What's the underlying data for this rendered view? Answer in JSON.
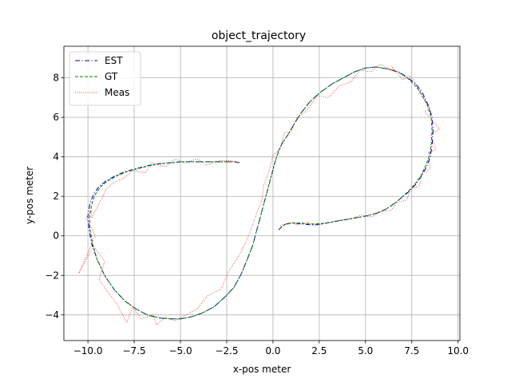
{
  "chart_data": {
    "type": "line",
    "title": "object_trajectory",
    "xlabel": "x-pos meter",
    "ylabel": "y-pos meter",
    "xlim": [
      -11.3,
      10.1
    ],
    "ylim": [
      -5.3,
      9.6
    ],
    "xticks": [
      -10.0,
      -7.5,
      -5.0,
      -2.5,
      0.0,
      2.5,
      5.0,
      7.5,
      10.0
    ],
    "xtick_labels": [
      "−10.0",
      "−7.5",
      "−5.0",
      "−2.5",
      "0.0",
      "2.5",
      "5.0",
      "7.5",
      "10.0"
    ],
    "yticks": [
      -4,
      -2,
      0,
      2,
      4,
      6,
      8
    ],
    "ytick_labels": [
      "−4",
      "−2",
      "0",
      "2",
      "4",
      "6",
      "8"
    ],
    "grid": true,
    "legend_position": "top-left",
    "series": [
      {
        "name": "EST",
        "color": "#0000cc",
        "style": "dashdot",
        "x": [
          0.3,
          0.5,
          0.7,
          1.1,
          1.6,
          2.1,
          2.6,
          3.2,
          3.8,
          4.4,
          5.0,
          5.6,
          6.1,
          6.5,
          6.9,
          7.3,
          7.7,
          8.0,
          8.3,
          8.5,
          8.6,
          8.65,
          8.6,
          8.4,
          8.1,
          7.7,
          7.3,
          6.8,
          6.2,
          5.6,
          5.0,
          4.4,
          3.8,
          3.2,
          2.6,
          2.0,
          1.5,
          1.1,
          0.8,
          0.5,
          0.3,
          0.1,
          -0.1,
          -0.3,
          -0.5,
          -0.7,
          -0.9,
          -1.1,
          -1.4,
          -1.7,
          -2.1,
          -2.6,
          -3.2,
          -3.8,
          -4.4,
          -5.0,
          -5.6,
          -6.2,
          -6.8,
          -7.4,
          -8.0,
          -8.6,
          -9.1,
          -9.5,
          -9.8,
          -9.95,
          -10.0,
          -9.9,
          -9.7,
          -9.4,
          -9.0,
          -8.5,
          -8.0,
          -7.4,
          -6.8,
          -6.2,
          -5.6,
          -5.0,
          -4.4,
          -3.8,
          -3.2,
          -2.6,
          -2.1,
          -1.8
        ],
        "y": [
          0.3,
          0.5,
          0.6,
          0.65,
          0.6,
          0.55,
          0.6,
          0.7,
          0.8,
          0.9,
          1.0,
          1.15,
          1.35,
          1.6,
          1.9,
          2.2,
          2.6,
          3.0,
          3.5,
          4.0,
          4.6,
          5.3,
          6.0,
          6.6,
          7.2,
          7.7,
          8.0,
          8.3,
          8.45,
          8.55,
          8.5,
          8.3,
          8.0,
          7.7,
          7.3,
          6.8,
          6.2,
          5.6,
          5.1,
          4.7,
          4.3,
          3.7,
          3.0,
          2.3,
          1.6,
          0.9,
          0.2,
          -0.5,
          -1.2,
          -1.9,
          -2.6,
          -3.1,
          -3.6,
          -3.9,
          -4.1,
          -4.2,
          -4.2,
          -4.15,
          -4.0,
          -3.7,
          -3.3,
          -2.7,
          -2.0,
          -1.2,
          -0.4,
          0.4,
          1.0,
          1.6,
          2.1,
          2.5,
          2.8,
          3.05,
          3.25,
          3.4,
          3.55,
          3.65,
          3.7,
          3.75,
          3.75,
          3.75,
          3.75,
          3.75,
          3.75,
          3.7
        ]
      },
      {
        "name": "GT",
        "color": "#008000",
        "style": "dashed",
        "x": [
          0.35,
          0.6,
          1.0,
          1.5,
          2.0,
          2.6,
          3.2,
          3.8,
          4.4,
          5.0,
          5.6,
          6.1,
          6.5,
          6.9,
          7.3,
          7.7,
          8.0,
          8.25,
          8.45,
          8.55,
          8.6,
          8.55,
          8.35,
          8.05,
          7.65,
          7.25,
          6.75,
          6.2,
          5.6,
          5.0,
          4.4,
          3.8,
          3.2,
          2.6,
          2.0,
          1.5,
          1.1,
          0.8,
          0.5,
          0.3,
          0.1,
          -0.1,
          -0.3,
          -0.5,
          -0.7,
          -0.9,
          -1.1,
          -1.4,
          -1.7,
          -2.1,
          -2.6,
          -3.2,
          -3.8,
          -4.4,
          -5.0,
          -5.6,
          -6.2,
          -6.8,
          -7.4,
          -8.0,
          -8.6,
          -9.1,
          -9.5,
          -9.75,
          -9.9,
          -9.9,
          -9.8,
          -9.6,
          -9.3,
          -8.9,
          -8.4,
          -7.9,
          -7.3,
          -6.7,
          -6.1,
          -5.5,
          -4.9,
          -4.3,
          -3.7,
          -3.1,
          -2.5,
          -2.0,
          -1.8
        ],
        "y": [
          0.35,
          0.55,
          0.65,
          0.65,
          0.6,
          0.62,
          0.7,
          0.8,
          0.9,
          1.0,
          1.15,
          1.35,
          1.6,
          1.9,
          2.25,
          2.65,
          3.05,
          3.55,
          4.05,
          4.65,
          5.3,
          6.0,
          6.6,
          7.15,
          7.65,
          8.0,
          8.3,
          8.45,
          8.55,
          8.5,
          8.3,
          8.0,
          7.7,
          7.3,
          6.8,
          6.2,
          5.6,
          5.1,
          4.7,
          4.3,
          3.7,
          3.0,
          2.3,
          1.6,
          0.9,
          0.2,
          -0.5,
          -1.2,
          -1.9,
          -2.6,
          -3.1,
          -3.6,
          -3.9,
          -4.1,
          -4.2,
          -4.2,
          -4.15,
          -4.0,
          -3.7,
          -3.3,
          -2.7,
          -2.0,
          -1.2,
          -0.4,
          0.4,
          1.0,
          1.6,
          2.1,
          2.5,
          2.8,
          3.05,
          3.25,
          3.4,
          3.55,
          3.65,
          3.7,
          3.75,
          3.75,
          3.75,
          3.75,
          3.75,
          3.75,
          3.7
        ]
      },
      {
        "name": "Meas",
        "color": "#ff0000",
        "style": "dotted",
        "x": [
          0.4,
          0.9,
          1.3,
          1.9,
          2.3,
          2.9,
          3.6,
          4.1,
          4.8,
          5.3,
          5.9,
          6.4,
          6.7,
          7.2,
          7.5,
          7.9,
          8.1,
          8.5,
          8.4,
          8.8,
          8.5,
          9.0,
          8.2,
          8.5,
          7.9,
          8.0,
          7.4,
          7.0,
          6.4,
          6.6,
          5.8,
          5.3,
          4.7,
          4.2,
          3.6,
          3.0,
          2.4,
          1.8,
          1.3,
          1.0,
          0.6,
          0.4,
          0.0,
          -0.2,
          -0.5,
          -0.6,
          -0.9,
          -1.2,
          -1.5,
          -1.9,
          -2.4,
          -2.8,
          -3.5,
          -4.1,
          -4.7,
          -5.3,
          -5.8,
          -6.3,
          -6.5,
          -7.1,
          -7.6,
          -7.9,
          -8.4,
          -8.8,
          -9.4,
          -9.1,
          -9.7,
          -10.5,
          -9.6,
          -10.1,
          -9.8,
          -9.8,
          -9.2,
          -9.0,
          -8.6,
          -8.1,
          -7.6,
          -6.9,
          -6.5,
          -5.8,
          -5.3,
          -4.8,
          -4.1,
          -3.6,
          -2.9,
          -2.3,
          -1.9
        ],
        "y": [
          0.5,
          0.7,
          0.55,
          0.7,
          0.5,
          0.65,
          0.8,
          0.85,
          1.05,
          0.95,
          1.25,
          1.3,
          1.7,
          1.8,
          2.4,
          2.5,
          3.2,
          3.4,
          4.2,
          4.4,
          5.1,
          5.4,
          6.3,
          6.4,
          7.3,
          7.4,
          8.1,
          7.9,
          8.6,
          8.3,
          8.7,
          8.3,
          8.4,
          7.8,
          7.6,
          7.0,
          7.1,
          6.3,
          6.0,
          5.3,
          5.2,
          4.4,
          4.1,
          3.3,
          2.6,
          1.8,
          1.1,
          0.3,
          -0.4,
          -1.1,
          -1.8,
          -2.7,
          -3.0,
          -3.7,
          -4.0,
          -4.3,
          -4.1,
          -4.5,
          -4.0,
          -4.2,
          -3.6,
          -4.4,
          -3.5,
          -3.0,
          -2.2,
          -1.3,
          -0.5,
          -1.9,
          0.0,
          0.9,
          1.3,
          0.9,
          2.0,
          2.4,
          2.7,
          2.9,
          3.3,
          3.2,
          3.7,
          3.5,
          3.9,
          3.7,
          3.9,
          3.6,
          3.8,
          3.8,
          3.7
        ]
      }
    ]
  }
}
